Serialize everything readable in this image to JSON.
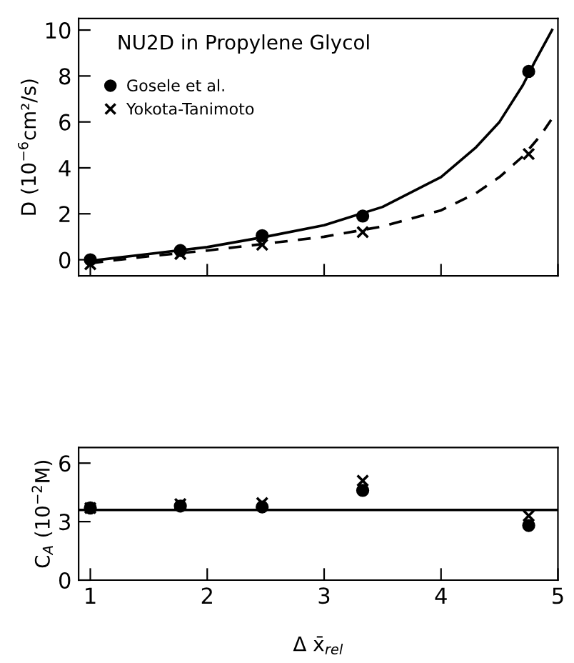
{
  "chart_data": [
    {
      "type": "scatter",
      "title": "NU2D in Propylene Glycol",
      "ylabel": "D (10$^{−6}$cm²/s)",
      "xlim": [
        0.9,
        5.0
      ],
      "xticks": [
        1,
        2,
        3,
        4,
        5
      ],
      "ylim": [
        -0.7,
        10.5
      ],
      "yticks": [
        0,
        2,
        4,
        6,
        8,
        10
      ],
      "tick_labels": "y",
      "legend": "top left",
      "grid": false,
      "series": [
        {
          "name": "Gosele et al.",
          "type": "scatter",
          "marker": "circle",
          "color": "#000000",
          "x": [
            1.0,
            1.77,
            2.47,
            3.33,
            4.75
          ],
          "values": [
            0.0,
            0.4,
            1.05,
            1.9,
            8.2
          ]
        },
        {
          "name": "Yokota-Tanimoto",
          "type": "scatter",
          "marker": "cross",
          "color": "#000000",
          "x": [
            1.0,
            1.77,
            2.47,
            3.33,
            4.75
          ],
          "values": [
            -0.2,
            0.25,
            0.65,
            1.2,
            4.6
          ]
        },
        {
          "type": "line",
          "line_style": "solid",
          "color": "#000000",
          "x": [
            1.0,
            1.5,
            2.0,
            2.5,
            3.0,
            3.5,
            4.0,
            4.3,
            4.5,
            4.7,
            4.8,
            4.95
          ],
          "values": [
            -0.05,
            0.25,
            0.55,
            1.0,
            1.5,
            2.3,
            3.6,
            4.9,
            6.0,
            7.6,
            8.6,
            10.0
          ]
        },
        {
          "type": "line",
          "line_style": "dashed",
          "color": "#000000",
          "x": [
            1.0,
            1.5,
            2.0,
            2.5,
            3.0,
            3.5,
            4.0,
            4.3,
            4.5,
            4.7,
            4.85,
            4.97
          ],
          "values": [
            -0.15,
            0.15,
            0.4,
            0.7,
            1.0,
            1.45,
            2.15,
            2.9,
            3.6,
            4.5,
            5.4,
            6.3
          ]
        }
      ]
    },
    {
      "type": "scatter",
      "xlabel": "Δ x̄$_{rel}$",
      "ylabel": "C$_{A}$ (10$^{−2}$M)",
      "xlim": [
        0.9,
        5.0
      ],
      "xticks": [
        1,
        2,
        3,
        4,
        5
      ],
      "ylim": [
        0,
        6.8
      ],
      "yticks": [
        0,
        3,
        6
      ],
      "grid": false,
      "ref_lines": [
        {
          "axis": "y",
          "value": 3.6,
          "label": null
        }
      ],
      "series": [
        {
          "type": "scatter",
          "marker": "circle",
          "color": "#000000",
          "x": [
            1.0,
            1.77,
            2.47,
            3.33,
            4.75
          ],
          "values": [
            3.7,
            3.8,
            3.75,
            4.6,
            2.8
          ]
        },
        {
          "type": "scatter",
          "marker": "cross",
          "color": "#000000",
          "x": [
            1.0,
            1.77,
            2.47,
            3.33,
            4.75
          ],
          "values": [
            3.7,
            3.9,
            3.95,
            5.1,
            3.3
          ]
        }
      ]
    }
  ]
}
